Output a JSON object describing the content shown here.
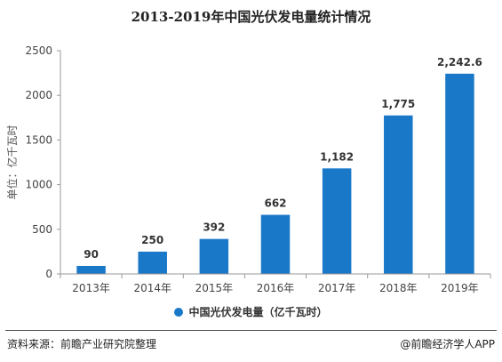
{
  "title": "2013-2019年中国光伏发电量统计情况",
  "colors": {
    "bar": "#1a78c8",
    "axis": "#999999",
    "text": "#333333"
  },
  "chart_data": {
    "type": "bar",
    "categories": [
      "2013年",
      "2014年",
      "2015年",
      "2016年",
      "2017年",
      "2018年",
      "2019年"
    ],
    "values": [
      90,
      250,
      392,
      662,
      1182,
      1775,
      2242.6
    ],
    "data_labels": [
      "90",
      "250",
      "392",
      "662",
      "1,182",
      "1,775",
      "2,242.6"
    ],
    "ylabel": "单位：亿千瓦时",
    "ylim": [
      0,
      2500
    ],
    "yticks": [
      "0",
      "500",
      "1000",
      "1500",
      "2000",
      "2500"
    ],
    "ytick_values": [
      0,
      500,
      1000,
      1500,
      2000,
      2500
    ],
    "grid": false,
    "legend_position": "bottom-center",
    "series": [
      {
        "name": "中国光伏发电量（亿千瓦时）",
        "values": [
          90,
          250,
          392,
          662,
          1182,
          1775,
          2242.6
        ]
      }
    ]
  },
  "footer": {
    "source": "资料来源：前瞻产业研究院整理",
    "brand": "@前瞻经济学人APP",
    "brand_icon": "leaf-circle-icon"
  }
}
